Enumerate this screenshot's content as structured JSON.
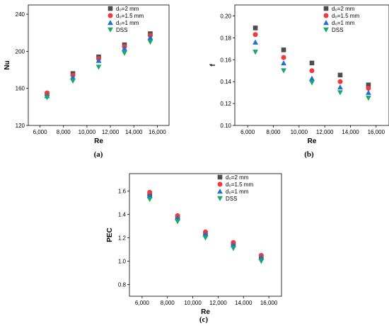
{
  "chart_data": [
    {
      "id": "a",
      "type": "scatter",
      "panel_label": "(a)",
      "xlabel": "Re",
      "ylabel": "Nu",
      "xlim": [
        5000,
        17000
      ],
      "ylim": [
        120,
        250
      ],
      "xticks": [
        6000,
        8000,
        10000,
        12000,
        14000,
        16000
      ],
      "xtick_labels": [
        "6,000",
        "8,000",
        "10,000",
        "12,000",
        "14,000",
        "16,000"
      ],
      "yticks": [
        120,
        160,
        200,
        240
      ],
      "ytick_labels": [
        "120",
        "160",
        "200",
        "240"
      ],
      "legend_position": "top-left",
      "x": [
        6600,
        8800,
        11000,
        13200,
        15400
      ],
      "series": [
        {
          "name": "d₀=2 mm",
          "marker": "square",
          "color": "#4d4d4d",
          "values": [
            154,
            176,
            194,
            207,
            219
          ]
        },
        {
          "name": "d₀=1.5 mm",
          "marker": "circle",
          "color": "#ee3b3b",
          "values": [
            155,
            174,
            192,
            205,
            217
          ]
        },
        {
          "name": "d₀=1 mm",
          "marker": "triangle-up",
          "color": "#1e6fd9",
          "values": [
            152,
            172,
            190,
            203,
            215
          ]
        },
        {
          "name": "DSS",
          "marker": "triangle-down",
          "color": "#1aa86a",
          "values": [
            150,
            168,
            183,
            198,
            210
          ]
        }
      ]
    },
    {
      "id": "b",
      "type": "scatter",
      "panel_label": "(b)",
      "xlabel": "Re",
      "ylabel": "f",
      "xlim": [
        5000,
        17000
      ],
      "ylim": [
        0.1,
        0.21
      ],
      "xticks": [
        6000,
        8000,
        10000,
        12000,
        14000,
        16000
      ],
      "xtick_labels": [
        "6,000",
        "8,000",
        "10,000",
        "12,000",
        "14,000",
        "16,000"
      ],
      "yticks": [
        0.1,
        0.12,
        0.14,
        0.16,
        0.18,
        0.2
      ],
      "ytick_labels": [
        "0.10",
        "0.12",
        "0.14",
        "0.16",
        "0.18",
        "0.20"
      ],
      "legend_position": "top-right",
      "x": [
        6600,
        8800,
        11000,
        13200,
        15400
      ],
      "series": [
        {
          "name": "d₀=2 mm",
          "marker": "square",
          "color": "#4d4d4d",
          "values": [
            0.189,
            0.169,
            0.157,
            0.146,
            0.137
          ]
        },
        {
          "name": "d₀=1.5 mm",
          "marker": "circle",
          "color": "#ee3b3b",
          "values": [
            0.183,
            0.162,
            0.15,
            0.14,
            0.134
          ]
        },
        {
          "name": "d₀=1 mm",
          "marker": "triangle-up",
          "color": "#1e6fd9",
          "values": [
            0.176,
            0.157,
            0.143,
            0.135,
            0.13
          ]
        },
        {
          "name": "DSS",
          "marker": "triangle-down",
          "color": "#1aa86a",
          "values": [
            0.167,
            0.15,
            0.139,
            0.13,
            0.125
          ]
        }
      ]
    },
    {
      "id": "c",
      "type": "scatter",
      "panel_label": "(c)",
      "xlabel": "Re",
      "ylabel": "PEC",
      "xlim": [
        5000,
        17000
      ],
      "ylim": [
        0.7,
        1.75
      ],
      "xticks": [
        6000,
        8000,
        10000,
        12000,
        14000,
        16000
      ],
      "xtick_labels": [
        "6,000",
        "8,000",
        "10,000",
        "12,000",
        "14,000",
        "16,000"
      ],
      "yticks": [
        0.8,
        1.0,
        1.2,
        1.4,
        1.6
      ],
      "ytick_labels": [
        "0.8",
        "1.0",
        "1.2",
        "1.4",
        "1.6"
      ],
      "legend_position": "top-right",
      "x": [
        6600,
        8800,
        11000,
        13200,
        15400
      ],
      "series": [
        {
          "name": "d₀=2 mm",
          "marker": "square",
          "color": "#4d4d4d",
          "values": [
            1.57,
            1.38,
            1.24,
            1.15,
            1.04
          ]
        },
        {
          "name": "d₀=1.5 mm",
          "marker": "circle",
          "color": "#ee3b3b",
          "values": [
            1.59,
            1.39,
            1.25,
            1.16,
            1.05
          ]
        },
        {
          "name": "d₀=1 mm",
          "marker": "triangle-up",
          "color": "#1e6fd9",
          "values": [
            1.56,
            1.37,
            1.23,
            1.14,
            1.03
          ]
        },
        {
          "name": "DSS",
          "marker": "triangle-down",
          "color": "#1aa86a",
          "values": [
            1.53,
            1.34,
            1.2,
            1.11,
            1.0
          ]
        }
      ]
    }
  ]
}
